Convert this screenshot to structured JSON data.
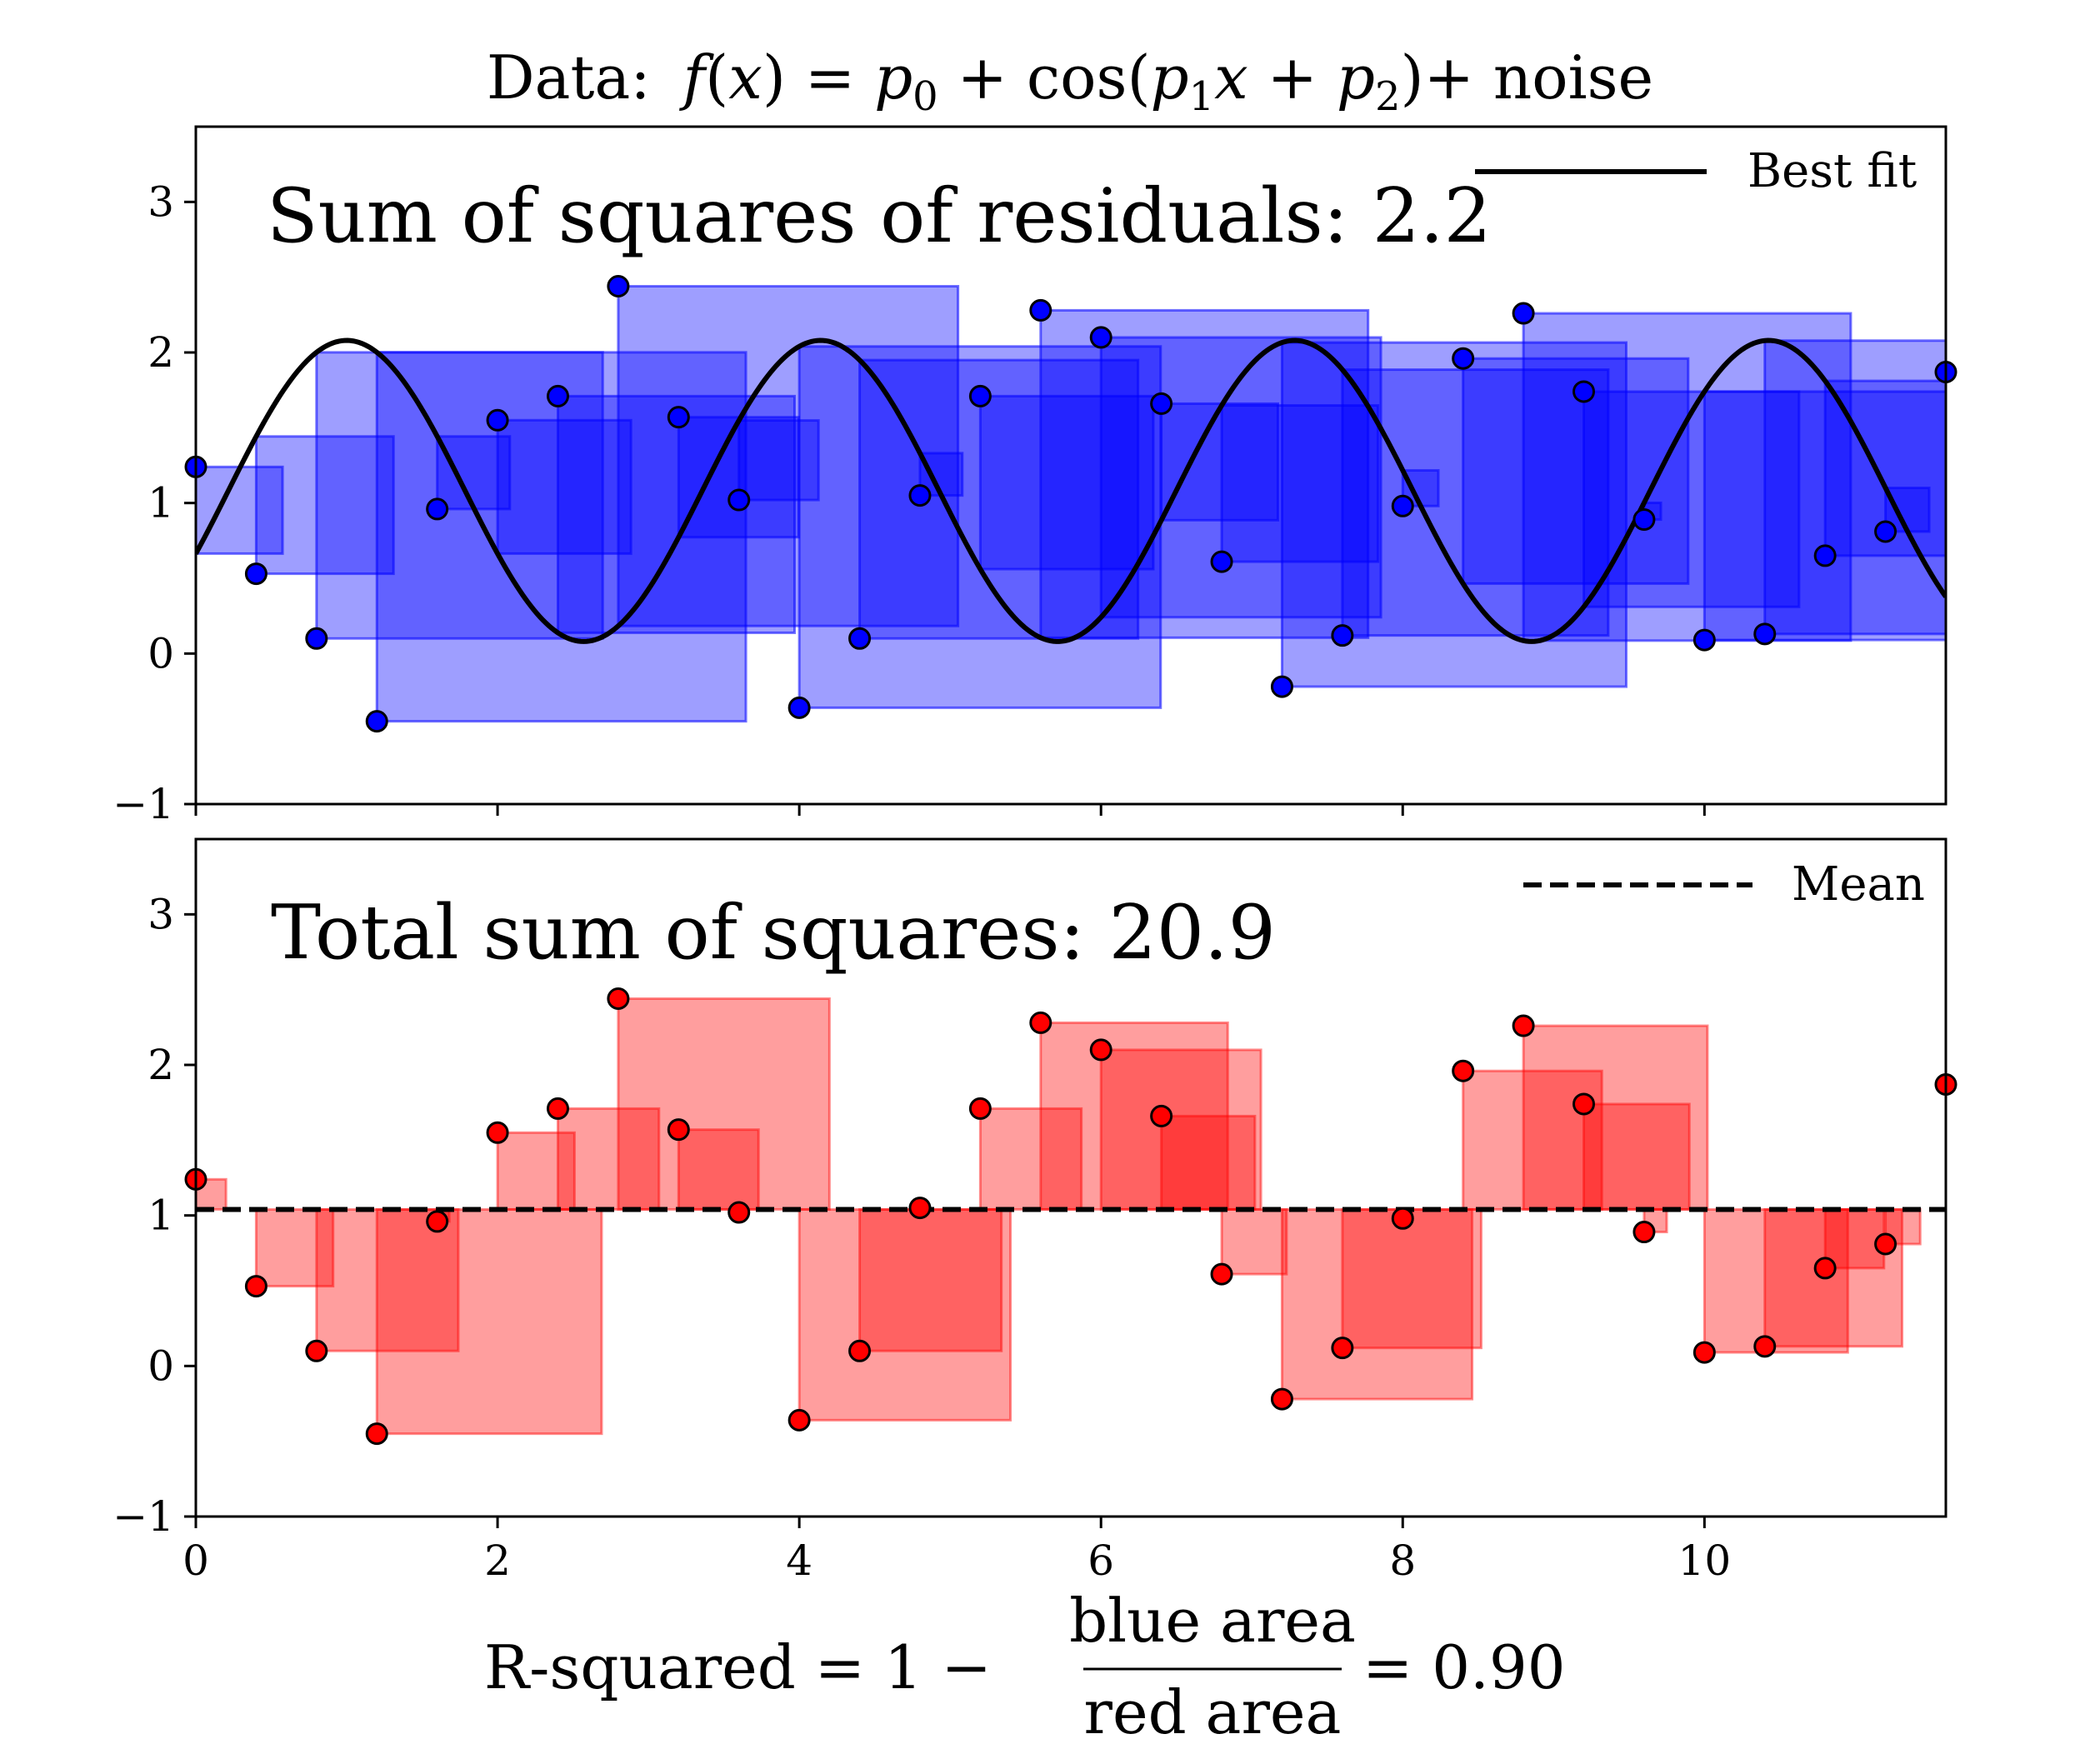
{
  "chart_data": {
    "type": "scatter",
    "title": {
      "prefix": "Data:",
      "f": "f",
      "x": "x",
      "p0": "p",
      "p0_sub": "0",
      "cos": "cos",
      "p1": "p",
      "p1_sub": "1",
      "p2": "p",
      "p2_sub": "2",
      "noise": "noise"
    },
    "x": [
      0,
      0.4,
      0.8,
      1.2,
      1.6,
      2.0,
      2.4,
      2.8,
      3.2,
      3.6,
      4.0,
      4.4,
      4.8,
      5.2,
      5.6,
      6.0,
      6.4,
      6.8,
      7.2,
      7.6,
      8.0,
      8.4,
      8.8,
      9.2,
      9.6,
      10.0,
      10.4,
      10.8,
      11.2,
      11.6
    ],
    "y": [
      1.24,
      0.53,
      0.1,
      -0.45,
      0.96,
      1.55,
      1.71,
      2.44,
      1.57,
      1.02,
      -0.36,
      0.1,
      1.05,
      1.71,
      2.28,
      2.1,
      1.66,
      0.61,
      -0.22,
      0.12,
      0.98,
      1.96,
      2.26,
      1.74,
      0.89,
      0.09,
      0.13,
      0.65,
      0.81,
      1.87
    ],
    "xlim": [
      0,
      11.6
    ],
    "ylim": [
      -1,
      3.5
    ],
    "xticks": [
      0,
      2,
      4,
      6,
      8,
      10
    ],
    "yticks": [
      -1,
      0,
      1,
      2,
      3
    ],
    "xtick_labels": [
      "0",
      "2",
      "4",
      "6",
      "8",
      "10"
    ],
    "ytick_labels": [
      "−1",
      "0",
      "1",
      "2",
      "3"
    ],
    "fit": {
      "p0": 1.08,
      "p1": 2.0,
      "p2": -2.0
    },
    "mean": 1.04,
    "panels": [
      {
        "id": "residuals",
        "annotation": "Sum of squares of residuals: 2.2",
        "legend_label": "Best fit",
        "legend_placement": "top-right",
        "point_color": "#0000ff",
        "square_color": "#0000ff"
      },
      {
        "id": "total",
        "annotation": "Total sum of squares: 20.9",
        "legend_label": "Mean",
        "legend_placement": "top-right",
        "point_color": "#ff0000",
        "square_color": "#ff0000"
      }
    ],
    "xlabel": {
      "prefix": "R-squared = 1 −",
      "numerator": "blue area",
      "denominator": "red area",
      "suffix": "= 0.90"
    }
  }
}
